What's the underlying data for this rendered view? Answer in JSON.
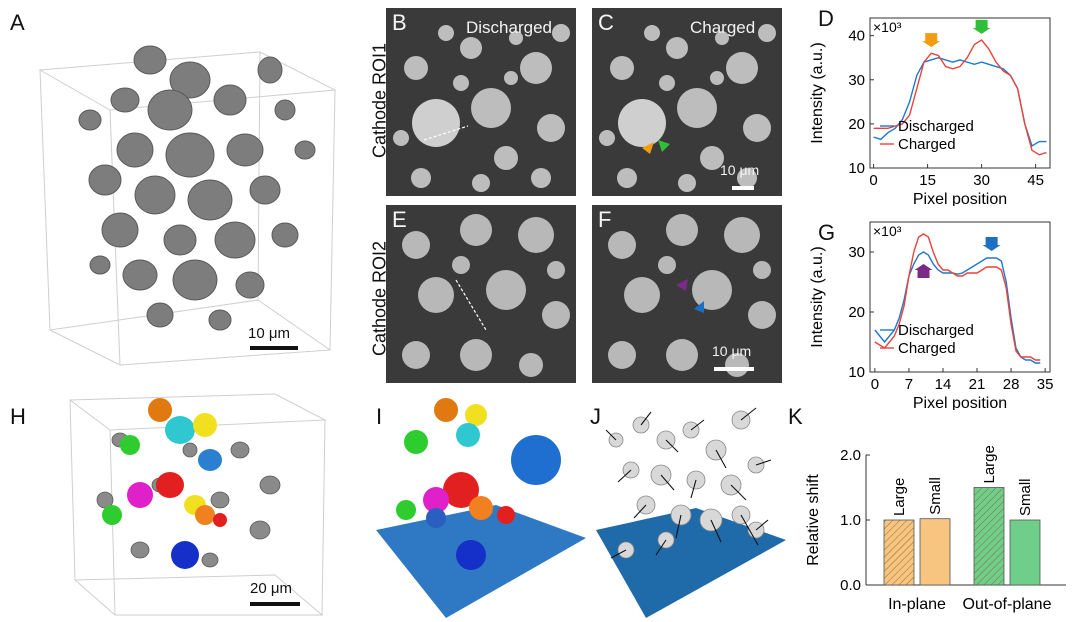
{
  "panels": {
    "A": {
      "letter": "A",
      "scale": "10 μm"
    },
    "B": {
      "letter": "B",
      "title": "Discharged"
    },
    "C": {
      "letter": "C",
      "title": "Charged",
      "scale": "10 μm"
    },
    "D": {
      "letter": "D"
    },
    "E": {
      "letter": "E"
    },
    "F": {
      "letter": "F",
      "scale": "10 μm"
    },
    "G": {
      "letter": "G"
    },
    "H": {
      "letter": "H",
      "scale": "20 μm"
    },
    "I": {
      "letter": "I"
    },
    "J": {
      "letter": "J"
    },
    "K": {
      "letter": "K"
    }
  },
  "row_labels": {
    "roi1": "Cathode ROI1",
    "roi2": "Cathode ROI2"
  },
  "colors": {
    "discharged": "#1f77d4",
    "charged": "#e8443a",
    "orange_arrow": "#f39c12",
    "green_arrow": "#2fbf3a",
    "purple_arrow": "#7b2a8a",
    "blue_arrow": "#1d6fc4",
    "bar_orange": "#f7c57f",
    "bar_green": "#6fcf8a"
  },
  "chart_data": [
    {
      "id": "D",
      "type": "line",
      "xlabel": "Pixel position",
      "ylabel": "Intensity (a.u.)",
      "multiplier": "×10³",
      "xticks": [
        0,
        15,
        30,
        45
      ],
      "yticks": [
        10,
        20,
        30,
        40
      ],
      "xlim": [
        -1,
        49
      ],
      "ylim": [
        10,
        44
      ],
      "legend": [
        "Discharged",
        "Charged"
      ],
      "series": [
        {
          "name": "Discharged",
          "x": [
            0,
            2,
            4,
            6,
            8,
            10,
            12,
            14,
            16,
            18,
            20,
            22,
            24,
            26,
            28,
            30,
            32,
            34,
            36,
            38,
            40,
            42,
            44,
            46,
            48
          ],
          "values": [
            17,
            16.5,
            18,
            19,
            21,
            25,
            31,
            34,
            34.5,
            35,
            34.5,
            34,
            34.5,
            34,
            33.5,
            34,
            33.5,
            33,
            32.5,
            31,
            28,
            20,
            15,
            16,
            16
          ]
        },
        {
          "name": "Charged",
          "x": [
            0,
            2,
            4,
            6,
            8,
            10,
            12,
            14,
            16,
            18,
            20,
            22,
            24,
            26,
            28,
            30,
            32,
            34,
            36,
            38,
            40,
            42,
            44,
            46,
            48
          ],
          "values": [
            19,
            19,
            19,
            19.5,
            20,
            22,
            28,
            34,
            36,
            35.5,
            33,
            32.5,
            33,
            35,
            38,
            39,
            37,
            34,
            32,
            31,
            28,
            20,
            14,
            13,
            13.5
          ]
        }
      ]
    },
    {
      "id": "G",
      "type": "line",
      "xlabel": "Pixel position",
      "ylabel": "Intensity (a.u.)",
      "multiplier": "×10³",
      "xticks": [
        0,
        7,
        14,
        21,
        28,
        35
      ],
      "yticks": [
        10,
        20,
        30
      ],
      "xlim": [
        -1,
        36
      ],
      "ylim": [
        10,
        35
      ],
      "legend": [
        "Discharged",
        "Charged"
      ],
      "series": [
        {
          "name": "Discharged",
          "x": [
            0,
            1,
            2,
            3,
            4,
            5,
            6,
            7,
            8,
            9,
            10,
            11,
            12,
            13,
            14,
            15,
            16,
            17,
            18,
            19,
            20,
            21,
            22,
            23,
            24,
            25,
            26,
            27,
            28,
            29,
            30,
            31,
            32,
            33,
            34
          ],
          "values": [
            17,
            16,
            15,
            16,
            17,
            19,
            22,
            26,
            28,
            29.5,
            30,
            29.5,
            28,
            27,
            26.5,
            26.5,
            26.5,
            26.3,
            26.5,
            27,
            27.5,
            28,
            28.5,
            29,
            29,
            29,
            28.5,
            25,
            19,
            14,
            12.5,
            12,
            12,
            11.5,
            11.5
          ]
        },
        {
          "name": "Charged",
          "x": [
            0,
            1,
            2,
            3,
            4,
            5,
            6,
            7,
            8,
            9,
            10,
            11,
            12,
            13,
            14,
            15,
            16,
            17,
            18,
            19,
            20,
            21,
            22,
            23,
            24,
            25,
            26,
            27,
            28,
            29,
            30,
            31,
            32,
            33,
            34
          ],
          "values": [
            15,
            14.5,
            14,
            15,
            16,
            18,
            21,
            26,
            30,
            32.5,
            33,
            32.5,
            30,
            28,
            27,
            27,
            26.5,
            26,
            26,
            26.5,
            26.5,
            26.5,
            27,
            27.5,
            27.5,
            27.5,
            27,
            24,
            18,
            13.5,
            12.5,
            12.5,
            12.5,
            12,
            12
          ]
        }
      ]
    },
    {
      "id": "K",
      "type": "bar",
      "ylabel": "Relative shift",
      "yticks": [
        "0.0",
        "1.0",
        "2.0"
      ],
      "ylim": [
        0,
        2
      ],
      "groups": [
        "In-plane",
        "Out-of-plane"
      ],
      "bars": [
        {
          "group": "In-plane",
          "label": "Large",
          "value": 1.0,
          "color": "#f7c57f",
          "hatched": true
        },
        {
          "group": "In-plane",
          "label": "Small",
          "value": 1.02,
          "color": "#f7c57f",
          "hatched": false
        },
        {
          "group": "Out-of-plane",
          "label": "Large",
          "value": 1.5,
          "color": "#6fcf8a",
          "hatched": true
        },
        {
          "group": "Out-of-plane",
          "label": "Small",
          "value": 1.0,
          "color": "#6fcf8a",
          "hatched": false
        }
      ]
    }
  ]
}
